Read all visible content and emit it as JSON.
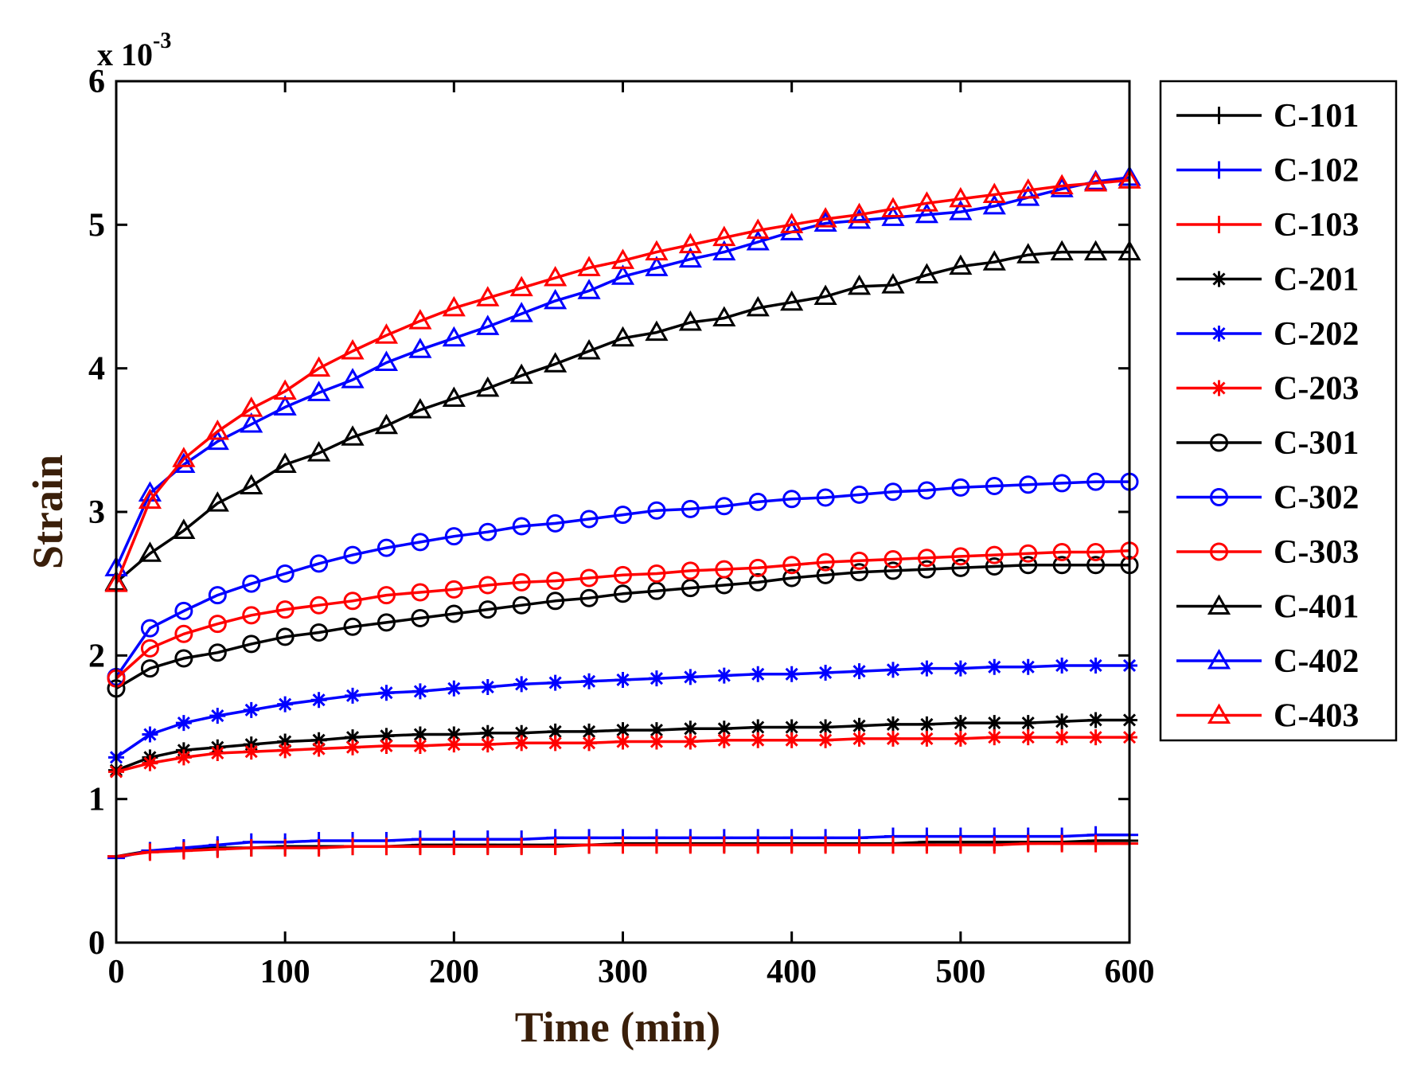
{
  "chart_data": {
    "type": "line",
    "xlabel": "Time (min)",
    "ylabel": "Strain",
    "y_multiplier": {
      "base": "x 10",
      "exponent": "-3"
    },
    "xlim": [
      0,
      600
    ],
    "ylim": [
      0,
      6
    ],
    "x_ticks": [
      "0",
      "100",
      "200",
      "300",
      "400",
      "500",
      "600"
    ],
    "y_ticks": [
      "0",
      "1",
      "2",
      "3",
      "4",
      "5",
      "6"
    ],
    "grid": false,
    "legend_position": "outside-right",
    "x": [
      0,
      20,
      40,
      60,
      80,
      100,
      120,
      140,
      160,
      180,
      200,
      220,
      240,
      260,
      280,
      300,
      320,
      340,
      360,
      380,
      400,
      420,
      440,
      460,
      480,
      500,
      520,
      540,
      560,
      580,
      600
    ],
    "series": [
      {
        "name": "C-101",
        "color": "#000000",
        "marker": "plus",
        "values": [
          0.6,
          0.64,
          0.65,
          0.66,
          0.66,
          0.67,
          0.67,
          0.67,
          0.67,
          0.68,
          0.68,
          0.68,
          0.68,
          0.68,
          0.68,
          0.69,
          0.69,
          0.69,
          0.69,
          0.69,
          0.69,
          0.69,
          0.69,
          0.69,
          0.7,
          0.7,
          0.7,
          0.7,
          0.7,
          0.71,
          0.71
        ]
      },
      {
        "name": "C-102",
        "color": "#0000ff",
        "marker": "plus",
        "values": [
          0.59,
          0.64,
          0.66,
          0.68,
          0.7,
          0.7,
          0.71,
          0.71,
          0.71,
          0.72,
          0.72,
          0.72,
          0.72,
          0.73,
          0.73,
          0.73,
          0.73,
          0.73,
          0.73,
          0.73,
          0.73,
          0.73,
          0.73,
          0.74,
          0.74,
          0.74,
          0.74,
          0.74,
          0.74,
          0.75,
          0.75
        ]
      },
      {
        "name": "C-103",
        "color": "#ff0000",
        "marker": "plus",
        "values": [
          0.6,
          0.63,
          0.64,
          0.65,
          0.66,
          0.66,
          0.66,
          0.67,
          0.67,
          0.67,
          0.67,
          0.67,
          0.67,
          0.67,
          0.68,
          0.68,
          0.68,
          0.68,
          0.68,
          0.68,
          0.68,
          0.68,
          0.68,
          0.68,
          0.68,
          0.68,
          0.68,
          0.69,
          0.69,
          0.69,
          0.69
        ]
      },
      {
        "name": "C-201",
        "color": "#000000",
        "marker": "star",
        "values": [
          1.2,
          1.29,
          1.34,
          1.36,
          1.38,
          1.4,
          1.41,
          1.43,
          1.44,
          1.45,
          1.45,
          1.46,
          1.46,
          1.47,
          1.47,
          1.48,
          1.48,
          1.49,
          1.49,
          1.5,
          1.5,
          1.5,
          1.51,
          1.52,
          1.52,
          1.53,
          1.53,
          1.53,
          1.54,
          1.55,
          1.55
        ]
      },
      {
        "name": "C-202",
        "color": "#0000ff",
        "marker": "star",
        "values": [
          1.29,
          1.45,
          1.53,
          1.58,
          1.62,
          1.66,
          1.69,
          1.72,
          1.74,
          1.75,
          1.77,
          1.78,
          1.8,
          1.81,
          1.82,
          1.83,
          1.84,
          1.85,
          1.86,
          1.87,
          1.87,
          1.88,
          1.89,
          1.9,
          1.91,
          1.91,
          1.92,
          1.92,
          1.93,
          1.93,
          1.93
        ]
      },
      {
        "name": "C-203",
        "color": "#ff0000",
        "marker": "star",
        "values": [
          1.19,
          1.25,
          1.29,
          1.32,
          1.33,
          1.34,
          1.35,
          1.36,
          1.37,
          1.37,
          1.38,
          1.38,
          1.39,
          1.39,
          1.39,
          1.4,
          1.4,
          1.4,
          1.41,
          1.41,
          1.41,
          1.41,
          1.42,
          1.42,
          1.42,
          1.42,
          1.43,
          1.43,
          1.43,
          1.43,
          1.43
        ]
      },
      {
        "name": "C-301",
        "color": "#000000",
        "marker": "circle",
        "values": [
          1.77,
          1.91,
          1.98,
          2.02,
          2.08,
          2.13,
          2.16,
          2.2,
          2.23,
          2.26,
          2.29,
          2.32,
          2.35,
          2.38,
          2.4,
          2.43,
          2.45,
          2.47,
          2.49,
          2.51,
          2.54,
          2.56,
          2.58,
          2.59,
          2.6,
          2.61,
          2.62,
          2.63,
          2.63,
          2.63,
          2.63
        ]
      },
      {
        "name": "C-302",
        "color": "#0000ff",
        "marker": "circle",
        "values": [
          1.85,
          2.19,
          2.31,
          2.42,
          2.5,
          2.57,
          2.64,
          2.7,
          2.75,
          2.79,
          2.83,
          2.86,
          2.9,
          2.92,
          2.95,
          2.98,
          3.01,
          3.02,
          3.04,
          3.07,
          3.09,
          3.1,
          3.12,
          3.14,
          3.15,
          3.17,
          3.18,
          3.19,
          3.2,
          3.21,
          3.21
        ]
      },
      {
        "name": "C-303",
        "color": "#ff0000",
        "marker": "circle",
        "values": [
          1.84,
          2.05,
          2.15,
          2.22,
          2.28,
          2.32,
          2.35,
          2.38,
          2.42,
          2.44,
          2.46,
          2.49,
          2.51,
          2.52,
          2.54,
          2.56,
          2.57,
          2.59,
          2.6,
          2.61,
          2.63,
          2.65,
          2.66,
          2.67,
          2.68,
          2.69,
          2.7,
          2.71,
          2.72,
          2.72,
          2.73
        ]
      },
      {
        "name": "C-401",
        "color": "#000000",
        "marker": "triangle",
        "values": [
          2.51,
          2.71,
          2.87,
          3.06,
          3.18,
          3.33,
          3.41,
          3.52,
          3.6,
          3.71,
          3.79,
          3.86,
          3.95,
          4.03,
          4.12,
          4.21,
          4.25,
          4.32,
          4.35,
          4.42,
          4.46,
          4.5,
          4.57,
          4.58,
          4.65,
          4.71,
          4.74,
          4.79,
          4.81,
          4.81,
          4.81
        ]
      },
      {
        "name": "C-402",
        "color": "#0000ff",
        "marker": "triangle",
        "values": [
          2.61,
          3.13,
          3.33,
          3.49,
          3.61,
          3.73,
          3.83,
          3.92,
          4.04,
          4.13,
          4.21,
          4.29,
          4.38,
          4.47,
          4.54,
          4.64,
          4.7,
          4.76,
          4.81,
          4.88,
          4.95,
          5.01,
          5.03,
          5.05,
          5.07,
          5.09,
          5.13,
          5.19,
          5.25,
          5.3,
          5.33
        ]
      },
      {
        "name": "C-403",
        "color": "#ff0000",
        "marker": "triangle",
        "values": [
          2.5,
          3.08,
          3.37,
          3.56,
          3.72,
          3.84,
          4.0,
          4.12,
          4.23,
          4.33,
          4.42,
          4.49,
          4.56,
          4.63,
          4.7,
          4.75,
          4.81,
          4.86,
          4.91,
          4.96,
          5.0,
          5.04,
          5.07,
          5.11,
          5.15,
          5.18,
          5.21,
          5.24,
          5.27,
          5.29,
          5.31
        ]
      }
    ]
  }
}
